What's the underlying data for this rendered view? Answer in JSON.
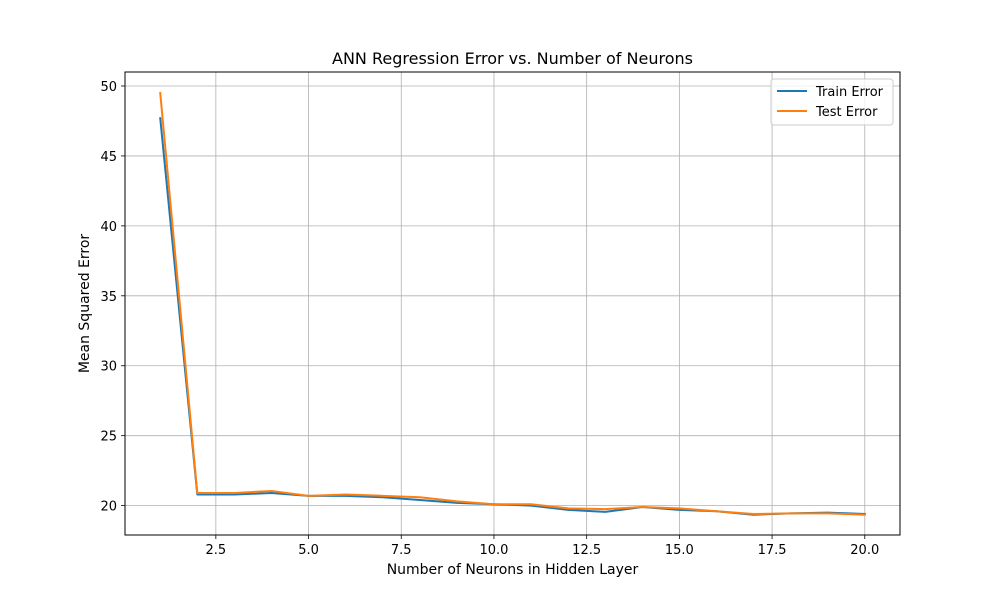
{
  "chart_data": {
    "type": "line",
    "title": "ANN Regression Error vs. Number of Neurons",
    "xlabel": "Number of Neurons in Hidden Layer",
    "ylabel": "Mean Squared Error",
    "x": [
      1,
      2,
      3,
      4,
      5,
      6,
      7,
      8,
      9,
      10,
      11,
      12,
      13,
      14,
      15,
      16,
      17,
      18,
      19,
      20
    ],
    "series": [
      {
        "name": "Train Error",
        "color": "#1f77b4",
        "values": [
          47.7,
          20.8,
          20.8,
          20.9,
          20.7,
          20.7,
          20.6,
          20.4,
          20.2,
          20.1,
          20.0,
          19.7,
          19.55,
          19.9,
          19.7,
          19.6,
          19.35,
          19.45,
          19.5,
          19.4
        ]
      },
      {
        "name": "Test Error",
        "color": "#ff7f0e",
        "values": [
          49.5,
          20.9,
          20.9,
          21.05,
          20.7,
          20.8,
          20.7,
          20.6,
          20.3,
          20.1,
          20.1,
          19.8,
          19.75,
          19.9,
          19.8,
          19.6,
          19.4,
          19.45,
          19.45,
          19.35
        ]
      }
    ],
    "xlim": [
      0.05,
      20.95
    ],
    "ylim": [
      17.9,
      51.0
    ],
    "xticks": [
      2.5,
      5.0,
      7.5,
      10.0,
      12.5,
      15.0,
      17.5,
      20.0
    ],
    "xtick_labels": [
      "2.5",
      "5.0",
      "7.5",
      "10.0",
      "12.5",
      "15.0",
      "17.5",
      "20.0"
    ],
    "yticks": [
      20,
      25,
      30,
      35,
      40,
      45,
      50
    ],
    "ytick_labels": [
      "20",
      "25",
      "30",
      "35",
      "40",
      "45",
      "50"
    ],
    "grid": true,
    "legend_position": "upper right"
  }
}
